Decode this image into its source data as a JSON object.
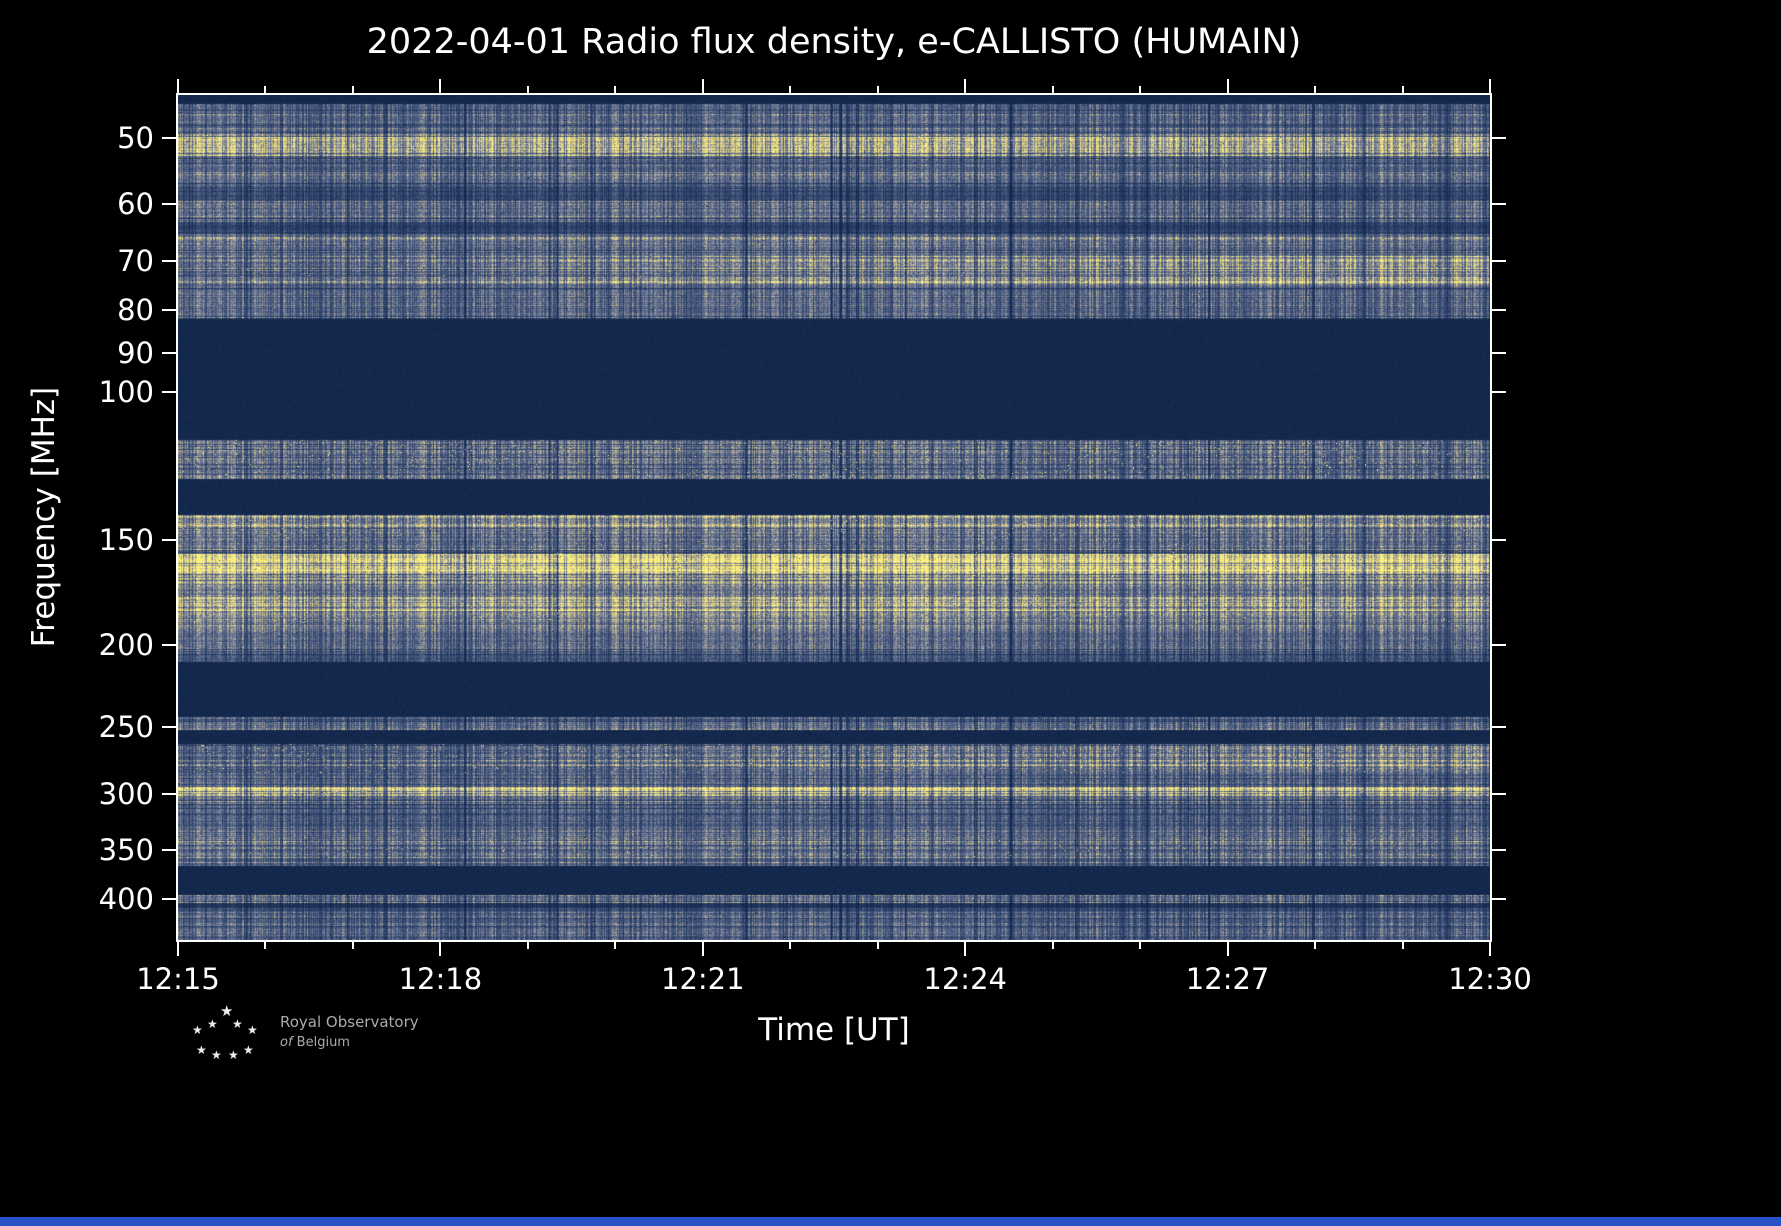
{
  "chart_data": {
    "type": "heatmap",
    "title": "2022-04-01 Radio flux density, e-CALLISTO (HUMAIN)",
    "xlabel": "Time [UT]",
    "ylabel": "Frequency [MHz]",
    "x_start": "12:15",
    "x_end": "12:30",
    "x_total_minutes": 15,
    "x_ticks": [
      {
        "label": "12:15",
        "minute": 0
      },
      {
        "label": "12:18",
        "minute": 3
      },
      {
        "label": "12:21",
        "minute": 6
      },
      {
        "label": "12:24",
        "minute": 9
      },
      {
        "label": "12:27",
        "minute": 12
      },
      {
        "label": "12:30",
        "minute": 15
      }
    ],
    "x_minor_every_minutes": 1,
    "y_scale": "log",
    "y_axis_inverted_low_at_top": true,
    "y_range_mhz": [
      44.5,
      447
    ],
    "y_ticks_mhz": [
      50,
      60,
      70,
      80,
      90,
      100,
      150,
      200,
      250,
      300,
      350,
      400
    ],
    "legend": "none",
    "grid": "off",
    "colormap_stops": [
      [
        0.0,
        "#071a3a"
      ],
      [
        0.2,
        "#20365f"
      ],
      [
        0.4,
        "#4a5a7e"
      ],
      [
        0.55,
        "#747e98"
      ],
      [
        0.68,
        "#a7a392"
      ],
      [
        0.8,
        "#d6ca86"
      ],
      [
        1.0,
        "#fdf27e"
      ]
    ],
    "blank_level": 0.1,
    "bands": [
      {
        "f0": 44.5,
        "f1": 45.6,
        "kind": "blank"
      },
      {
        "f0": 45.6,
        "f1": 49.5,
        "kind": "noise",
        "level": 0.42
      },
      {
        "f0": 49.5,
        "f1": 52.5,
        "kind": "noise",
        "level": 0.72,
        "speckle": 0.2
      },
      {
        "f0": 52.5,
        "f1": 57.0,
        "kind": "noise",
        "level": 0.45
      },
      {
        "f0": 57.0,
        "f1": 59.5,
        "kind": "noise",
        "level": 0.32
      },
      {
        "f0": 59.5,
        "f1": 63.0,
        "kind": "noise",
        "level": 0.46
      },
      {
        "f0": 63.0,
        "f1": 65.0,
        "kind": "noise",
        "level": 0.28
      },
      {
        "f0": 65.0,
        "f1": 69.0,
        "kind": "noise",
        "level": 0.5
      },
      {
        "f0": 69.0,
        "f1": 75.0,
        "kind": "noise",
        "level": 0.55,
        "ramp": true,
        "speckle": 0.15
      },
      {
        "f0": 75.0,
        "f1": 82.0,
        "kind": "noise",
        "level": 0.44
      },
      {
        "f0": 82.0,
        "f1": 114.0,
        "kind": "blank"
      },
      {
        "f0": 114.0,
        "f1": 127.0,
        "kind": "noise",
        "level": 0.5,
        "speckle": 0.9
      },
      {
        "f0": 127.0,
        "f1": 140.0,
        "kind": "blank"
      },
      {
        "f0": 140.0,
        "f1": 146.0,
        "kind": "noise",
        "level": 0.58,
        "speckle": 0.8
      },
      {
        "f0": 146.0,
        "f1": 156.0,
        "kind": "noise",
        "level": 0.5,
        "speckle": 0.3
      },
      {
        "f0": 156.0,
        "f1": 163.0,
        "kind": "noise",
        "level": 0.88,
        "speckle": 0.4
      },
      {
        "f0": 163.0,
        "f1": 170.0,
        "kind": "noise",
        "level": 0.75,
        "speckle": 0.4
      },
      {
        "f0": 170.0,
        "f1": 175.0,
        "kind": "noise",
        "level": 0.52
      },
      {
        "f0": 175.0,
        "f1": 182.0,
        "kind": "noise",
        "level": 0.7,
        "speckle": 0.3
      },
      {
        "f0": 182.0,
        "f1": 188.0,
        "kind": "noise",
        "level": 0.58,
        "speckle": 0.5
      },
      {
        "f0": 188.0,
        "f1": 203.0,
        "kind": "noise",
        "level": 0.48
      },
      {
        "f0": 203.0,
        "f1": 209.0,
        "kind": "noise",
        "level": 0.38
      },
      {
        "f0": 209.0,
        "f1": 243.0,
        "kind": "blank"
      },
      {
        "f0": 243.0,
        "f1": 252.0,
        "kind": "noise",
        "level": 0.46
      },
      {
        "f0": 252.0,
        "f1": 262.0,
        "kind": "blank"
      },
      {
        "f0": 262.0,
        "f1": 283.0,
        "kind": "noise",
        "level": 0.5,
        "speckle": 0.7,
        "ramp": true
      },
      {
        "f0": 283.0,
        "f1": 294.0,
        "kind": "noise",
        "level": 0.46
      },
      {
        "f0": 294.0,
        "f1": 302.0,
        "kind": "noise",
        "level": 0.85,
        "speckle": 0.4
      },
      {
        "f0": 302.0,
        "f1": 337.0,
        "kind": "noise",
        "level": 0.44
      },
      {
        "f0": 337.0,
        "f1": 357.0,
        "kind": "noise",
        "level": 0.5,
        "speckle": 0.35
      },
      {
        "f0": 357.0,
        "f1": 365.0,
        "kind": "noise",
        "level": 0.4
      },
      {
        "f0": 365.0,
        "f1": 395.0,
        "kind": "blank"
      },
      {
        "f0": 395.0,
        "f1": 404.0,
        "kind": "noise",
        "level": 0.5
      },
      {
        "f0": 404.0,
        "f1": 410.0,
        "kind": "noise",
        "level": 0.18
      },
      {
        "f0": 410.0,
        "f1": 447.0,
        "kind": "noise",
        "level": 0.44
      }
    ]
  },
  "colors": {
    "background": "#000000",
    "frame": "#ffffff",
    "text": "#ffffff",
    "bottom_strip": "#2a52c8",
    "logo_text": "#ababab"
  },
  "icons": {
    "star": "★"
  },
  "footer": {
    "org_line1": "Royal Observatory",
    "org_line2_prefix": "of",
    "org_line2": "Belgium"
  }
}
